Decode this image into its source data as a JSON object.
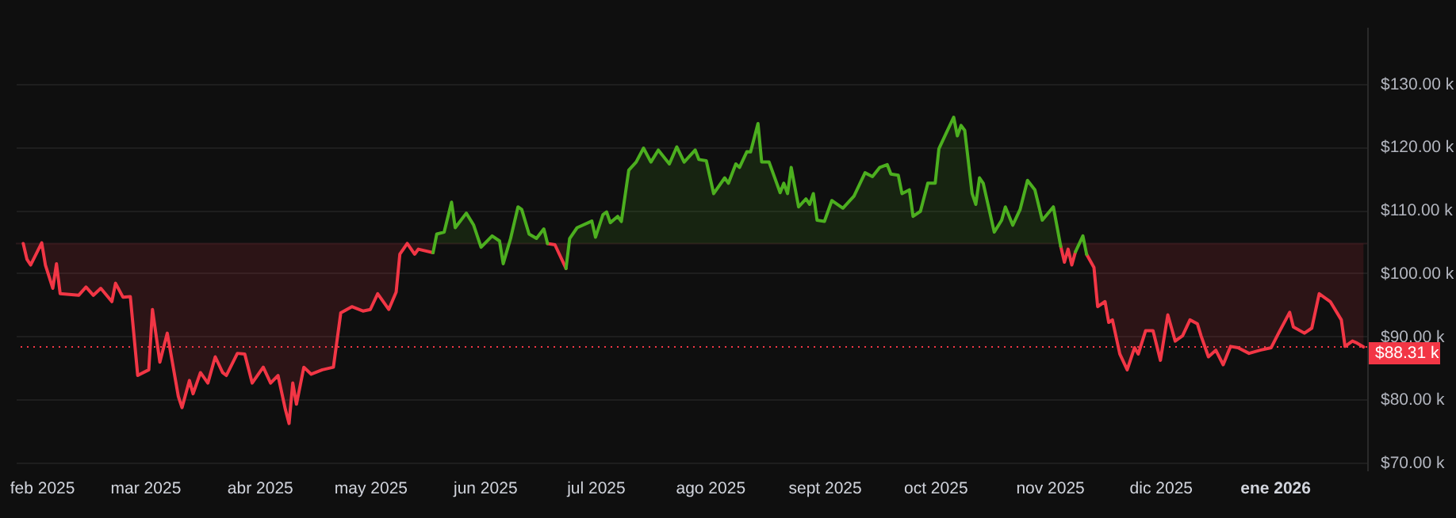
{
  "chart_data": {
    "type": "line",
    "xlim": [
      "2025-01-25",
      "2026-01-26"
    ],
    "xticks": [
      {
        "value": "2025-02-01",
        "label": "feb 2025"
      },
      {
        "value": "2025-03-01",
        "label": "mar 2025"
      },
      {
        "value": "2025-04-01",
        "label": "abr 2025"
      },
      {
        "value": "2025-05-01",
        "label": "may 2025"
      },
      {
        "value": "2025-06-01",
        "label": "jun 2025"
      },
      {
        "value": "2025-07-01",
        "label": "jul 2025"
      },
      {
        "value": "2025-08-01",
        "label": "ago 2025"
      },
      {
        "value": "2025-09-01",
        "label": "sept 2025"
      },
      {
        "value": "2025-10-01",
        "label": "oct 2025"
      },
      {
        "value": "2025-11-01",
        "label": "nov 2025"
      },
      {
        "value": "2025-12-01",
        "label": "dic 2025"
      },
      {
        "value": "2026-01-01",
        "label": "ene 2026"
      }
    ],
    "ylim": [
      68.75,
      139
    ],
    "yticks": [
      {
        "value": 70,
        "label": "$70.00 k"
      },
      {
        "value": 80,
        "label": "$80.00 k"
      },
      {
        "value": 90,
        "label": "$90.00 k"
      },
      {
        "value": 100,
        "label": "$100.00 k"
      },
      {
        "value": 110,
        "label": "$110.00 k"
      },
      {
        "value": 120,
        "label": "$120.00 k"
      },
      {
        "value": 130,
        "label": "$130.00 k"
      }
    ],
    "grid": "y",
    "ref_lines": [
      {
        "axis": "y",
        "value": 104.7,
        "label": null,
        "color": "#2a1a1c",
        "line_style": "solid"
      },
      {
        "axis": "y",
        "value": 88.31,
        "label": "$88.31 k",
        "color": "#f23645",
        "line_style": "dotted"
      }
    ],
    "series": [
      {
        "color": "#f23645",
        "x": [
          "2025-01-27",
          "2025-01-28",
          "2025-01-29",
          "2025-02-01",
          "2025-02-02",
          "2025-02-04",
          "2025-02-05",
          "2025-02-06",
          "2025-02-11",
          "2025-02-13",
          "2025-02-15",
          "2025-02-17",
          "2025-02-20",
          "2025-02-21",
          "2025-02-23",
          "2025-02-25",
          "2025-02-27",
          "2025-03-02",
          "2025-03-03",
          "2025-03-05",
          "2025-03-07",
          "2025-03-08",
          "2025-03-10",
          "2025-03-11",
          "2025-03-13",
          "2025-03-14",
          "2025-03-16",
          "2025-03-18",
          "2025-03-20",
          "2025-03-22",
          "2025-03-23",
          "2025-03-26",
          "2025-03-28",
          "2025-03-30",
          "2025-04-02",
          "2025-04-04",
          "2025-04-06",
          "2025-04-08",
          "2025-04-09",
          "2025-04-10",
          "2025-04-11",
          "2025-04-13",
          "2025-04-15",
          "2025-04-18",
          "2025-04-21",
          "2025-04-23",
          "2025-04-26",
          "2025-04-29",
          "2025-05-01",
          "2025-05-03",
          "2025-05-06",
          "2025-05-08",
          "2025-05-09",
          "2025-05-11",
          "2025-05-13",
          "2025-05-14",
          "2025-05-18",
          "2025-05-21",
          "2025-06-18",
          "2025-06-20",
          "2025-06-23",
          "2025-06-26",
          "2025-11-04",
          "2025-11-05",
          "2025-11-06",
          "2025-11-07",
          "2025-11-08",
          "2025-11-09",
          "2025-11-11",
          "2025-11-13",
          "2025-11-14",
          "2025-11-16",
          "2025-11-17",
          "2025-11-18",
          "2025-11-20",
          "2025-11-22",
          "2025-11-24",
          "2025-11-25",
          "2025-11-27",
          "2025-11-29",
          "2025-12-01",
          "2025-12-03",
          "2025-12-05",
          "2025-12-07",
          "2025-12-09",
          "2025-12-11",
          "2025-12-12",
          "2025-12-14",
          "2025-12-16",
          "2025-12-18",
          "2025-12-20",
          "2025-12-22",
          "2025-12-25",
          "2025-12-28",
          "2025-12-31",
          "2026-01-02",
          "2026-01-05",
          "2026-01-06",
          "2026-01-09",
          "2026-01-11",
          "2026-01-13",
          "2026-01-16",
          "2026-01-19",
          "2026-01-20",
          "2026-01-22",
          "2026-01-23",
          "2026-01-25"
        ],
        "values": [
          104.7,
          102.2,
          101.3,
          104.8,
          101.3,
          97.6,
          101.5,
          96.75,
          96.5,
          97.8,
          96.5,
          97.6,
          95.5,
          98.4,
          96.2,
          96.3,
          83.8,
          84.7,
          94.25,
          85.9,
          90.5,
          87.2,
          80.5,
          78.7,
          83,
          80.9,
          84.25,
          82.6,
          86.75,
          84.25,
          83.8,
          87.3,
          87.2,
          82.6,
          85.1,
          82.6,
          83.8,
          78.4,
          76.2,
          82.6,
          79.25,
          85.1,
          84,
          84.7,
          85.1,
          93.7,
          94.7,
          94,
          94.25,
          96.75,
          94.25,
          97,
          103,
          104.7,
          103,
          103.8,
          103.25,
          null,
          104.7,
          104.5,
          100.75,
          null,
          104.25,
          101.75,
          103.8,
          101.3,
          103.4,
          null,
          103,
          100.9,
          94.7,
          95.5,
          92.2,
          92.6,
          87.2,
          84.7,
          88.2,
          87.2,
          90.9,
          90.9,
          86.2,
          93.4,
          89.25,
          90.1,
          92.6,
          92,
          90.1,
          86.75,
          87.8,
          85.5,
          88.4,
          88.2,
          87.3,
          87.8,
          88.2,
          90.5,
          93.8,
          91.5,
          90.5,
          91.3,
          96.75,
          95.5,
          92.6,
          88.4,
          89.25,
          89,
          88.31
        ]
      },
      {
        "color": "#4caf1f",
        "x": [
          "2025-05-18",
          "2025-05-19",
          "2025-05-21",
          "2025-05-23",
          "2025-05-24",
          "2025-05-27",
          "2025-05-29",
          "2025-05-31",
          "2025-06-03",
          "2025-06-05",
          "2025-06-06",
          "2025-06-08",
          "2025-06-10",
          "2025-06-11",
          "2025-06-13",
          "2025-06-15",
          "2025-06-17",
          "2025-06-18",
          "2025-06-20",
          "2025-06-23",
          "2025-06-24",
          "2025-06-26",
          "2025-06-30",
          "2025-07-01",
          "2025-07-03",
          "2025-07-04",
          "2025-07-05",
          "2025-07-07",
          "2025-07-08",
          "2025-07-10",
          "2025-07-12",
          "2025-07-14",
          "2025-07-16",
          "2025-07-18",
          "2025-07-21",
          "2025-07-23",
          "2025-07-25",
          "2025-07-28",
          "2025-07-29",
          "2025-07-31",
          "2025-08-02",
          "2025-08-05",
          "2025-08-06",
          "2025-08-08",
          "2025-08-09",
          "2025-08-11",
          "2025-08-12",
          "2025-08-14",
          "2025-08-15",
          "2025-08-17",
          "2025-08-20",
          "2025-08-21",
          "2025-08-22",
          "2025-08-23",
          "2025-08-25",
          "2025-08-27",
          "2025-08-28",
          "2025-08-29",
          "2025-08-30",
          "2025-09-01",
          "2025-09-03",
          "2025-09-06",
          "2025-09-09",
          "2025-09-12",
          "2025-09-14",
          "2025-09-16",
          "2025-09-18",
          "2025-09-19",
          "2025-09-21",
          "2025-09-22",
          "2025-09-24",
          "2025-09-25",
          "2025-09-27",
          "2025-09-29",
          "2025-10-01",
          "2025-10-02",
          "2025-10-04",
          "2025-10-06",
          "2025-10-07",
          "2025-10-08",
          "2025-10-09",
          "2025-10-11",
          "2025-10-12",
          "2025-10-13",
          "2025-10-14",
          "2025-10-17",
          "2025-10-19",
          "2025-10-20",
          "2025-10-22",
          "2025-10-24",
          "2025-10-26",
          "2025-10-28",
          "2025-10-30",
          "2025-11-02",
          "2025-11-04",
          "2025-11-06",
          "2025-11-08",
          "2025-11-10",
          "2025-11-11"
        ],
        "values": [
          103.25,
          106.2,
          106.5,
          111.25,
          107.2,
          109.5,
          107.6,
          104.1,
          105.9,
          105.1,
          101.5,
          105.5,
          110.5,
          110.1,
          106.2,
          105.5,
          107,
          104.7,
          null,
          100.75,
          105.5,
          107.2,
          108.25,
          105.7,
          109.25,
          109.7,
          108,
          109,
          108.2,
          116.3,
          117.6,
          119.8,
          117.6,
          119.5,
          117.3,
          120,
          117.6,
          119.5,
          118,
          117.8,
          112.6,
          115.1,
          114.25,
          117.3,
          116.75,
          119.25,
          119.2,
          123.7,
          117.6,
          117.6,
          112.75,
          114.25,
          112.6,
          116.75,
          110.5,
          111.75,
          110.9,
          112.6,
          108.4,
          108.2,
          111.5,
          110.3,
          112.2,
          115.9,
          115.3,
          116.75,
          117.2,
          115.7,
          115.5,
          112.6,
          113.2,
          109,
          109.8,
          114.25,
          114.25,
          119.7,
          122.2,
          124.7,
          121.75,
          123.4,
          122.6,
          112.6,
          110.9,
          115.1,
          114.25,
          106.5,
          108.4,
          110.5,
          107.6,
          110.1,
          114.7,
          113.2,
          108.4,
          110.5,
          104.25,
          null,
          103.4,
          105.9,
          103
        ]
      }
    ]
  }
}
